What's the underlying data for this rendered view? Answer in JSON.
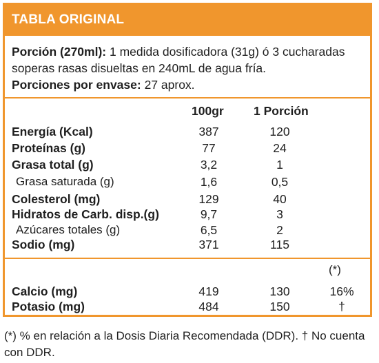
{
  "header": {
    "title": "TABLA ORIGINAL"
  },
  "serving": {
    "portion_label": "Porción (270ml):",
    "portion_text": " 1 medida dosificadora (31g) ó 3 cucharadas soperas rasas disueltas en 240mL de agua fría.",
    "per_container_label": "Porciones por envase:",
    "per_container_text": " 27 aprox."
  },
  "columns": {
    "per100": "100gr",
    "per_portion": "1 Porción",
    "ddr_mark": "(*)"
  },
  "rows": [
    {
      "label": "Energía (Kcal)",
      "per100": "387",
      "portion": "120"
    },
    {
      "label": "Proteínas (g)",
      "per100": "77",
      "portion": "24"
    },
    {
      "label": "Grasa total (g)",
      "per100": "3,2",
      "portion": "1"
    },
    {
      "label": "Grasa saturada (g)",
      "per100": "1,6",
      "portion": "0,5"
    },
    {
      "label": "Colesterol (mg)",
      "per100": "129",
      "portion": "40"
    },
    {
      "label": "Hidratos de Carb. disp.(g)",
      "per100": "9,7",
      "portion": "3"
    },
    {
      "label": "Azúcares totales (g)",
      "per100": "6,5",
      "portion": "2"
    },
    {
      "label": "Sodio (mg)",
      "per100": "371",
      "portion": "115"
    }
  ],
  "minerals": [
    {
      "label": "Calcio (mg)",
      "per100": "419",
      "portion": "130",
      "ddr": "16%"
    },
    {
      "label": "Potasio (mg)",
      "per100": "484",
      "portion": "150",
      "ddr": "†"
    }
  ],
  "footnote": "(*) % en relación a la Dosis Diaria Recomendada (DDR). † No cuenta con DDR.",
  "colors": {
    "accent": "#f0962d",
    "text": "#1f1f1f"
  }
}
